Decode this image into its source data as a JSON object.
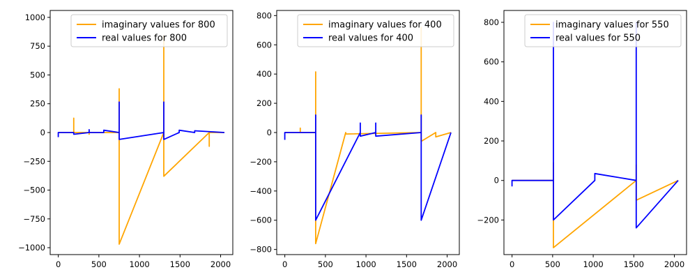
{
  "colors": {
    "imag": "#FFA500",
    "real": "#0000FF",
    "axis": "#000000",
    "legend_border": "#cccccc"
  },
  "chart_data": [
    {
      "type": "line",
      "title": "",
      "xlabel": "",
      "ylabel": "",
      "xlim": [
        -100,
        2150
      ],
      "ylim": [
        -1060,
        1060
      ],
      "xticks": [
        0,
        500,
        1000,
        1500,
        2000
      ],
      "yticks": [
        -1000,
        -750,
        -500,
        -250,
        0,
        250,
        500,
        750,
        1000
      ],
      "legend": {
        "location": "upper right",
        "entries": [
          "imaginary values for 800",
          "real values for 800"
        ]
      },
      "series": [
        {
          "name": "imaginary values for 800",
          "color_key": "imag",
          "x": [
            0,
            190,
            190,
            190,
            380,
            380,
            380,
            750,
            750,
            750,
            1300,
            1300,
            1300,
            1860,
            1860,
            1860,
            2047
          ],
          "y": [
            0,
            0,
            125,
            0,
            0,
            -15,
            0,
            0,
            380,
            -970,
            0,
            840,
            -380,
            0,
            -120,
            0,
            0
          ]
        },
        {
          "name": "real values for 800",
          "color_key": "real",
          "x": [
            0,
            0,
            5,
            190,
            190,
            380,
            380,
            380,
            560,
            560,
            750,
            750,
            750,
            1300,
            1300,
            1300,
            1490,
            1490,
            1680,
            1680,
            2047
          ],
          "y": [
            -40,
            0,
            0,
            0,
            -15,
            0,
            25,
            0,
            0,
            20,
            0,
            265,
            -60,
            0,
            265,
            -60,
            0,
            20,
            0,
            15,
            0
          ]
        }
      ]
    },
    {
      "type": "line",
      "title": "",
      "xlabel": "",
      "ylabel": "",
      "xlim": [
        -100,
        2150
      ],
      "ylim": [
        -835,
        835
      ],
      "xticks": [
        0,
        500,
        1000,
        1500,
        2000
      ],
      "yticks": [
        -800,
        -600,
        -400,
        -200,
        0,
        200,
        400,
        600,
        800
      ],
      "legend": {
        "location": "upper right",
        "entries": [
          "imaginary values for 400",
          "real values for 400"
        ]
      },
      "series": [
        {
          "name": "imaginary values for 400",
          "color_key": "imag",
          "x": [
            0,
            190,
            190,
            190,
            380,
            380,
            380,
            750,
            750,
            1680,
            1680,
            1680,
            1860,
            1860,
            2047
          ],
          "y": [
            0,
            0,
            30,
            0,
            0,
            415,
            -760,
            0,
            -10,
            0,
            720,
            -60,
            0,
            -30,
            0
          ]
        },
        {
          "name": "real values for 400",
          "color_key": "real",
          "x": [
            0,
            0,
            5,
            380,
            380,
            380,
            930,
            930,
            930,
            1120,
            1120,
            1120,
            1680,
            1680,
            1680,
            2047
          ],
          "y": [
            -50,
            0,
            0,
            0,
            120,
            -600,
            0,
            65,
            -25,
            0,
            65,
            -25,
            0,
            120,
            -600,
            0
          ]
        }
      ]
    },
    {
      "type": "line",
      "title": "",
      "xlabel": "",
      "ylabel": "",
      "xlim": [
        -100,
        2150
      ],
      "ylim": [
        -375,
        860
      ],
      "xticks": [
        0,
        500,
        1000,
        1500,
        2000
      ],
      "yticks": [
        -200,
        0,
        200,
        400,
        600,
        800
      ],
      "legend": {
        "location": "upper right",
        "entries": [
          "imaginary values for 550",
          "real values for 550"
        ]
      },
      "series": [
        {
          "name": "imaginary values for 550",
          "color_key": "imag",
          "x": [
            0,
            510,
            510,
            510,
            1530,
            1530,
            1530,
            2047
          ],
          "y": [
            0,
            0,
            90,
            -340,
            0,
            80,
            -100,
            0
          ]
        },
        {
          "name": "real values for 550",
          "color_key": "real",
          "x": [
            0,
            0,
            5,
            510,
            510,
            510,
            1020,
            1020,
            1530,
            1530,
            1530,
            2047
          ],
          "y": [
            -30,
            0,
            0,
            0,
            800,
            -200,
            0,
            35,
            0,
            800,
            -240,
            0
          ]
        }
      ]
    }
  ]
}
